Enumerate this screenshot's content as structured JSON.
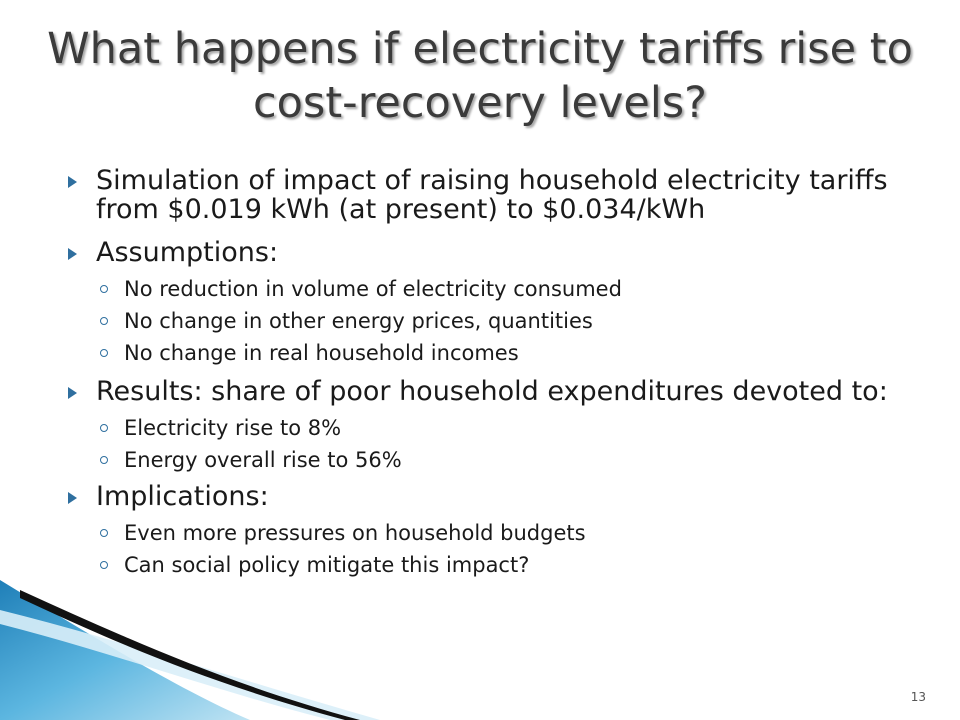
{
  "title": "What happens if electricity tariffs rise to cost-recovery levels?",
  "bullets": [
    {
      "text": "Simulation of impact of raising household electricity tariffs from $0.019 kWh (at present) to $0.034/kWh",
      "sub": []
    },
    {
      "text": "Assumptions:",
      "sub": [
        "No reduction in volume of electricity consumed",
        "No change in other energy prices, quantities",
        "No change in real household incomes"
      ]
    },
    {
      "text": "Results: share of poor household expenditures devoted to:",
      "sub": [
        "Electricity rise to 8%",
        "Energy overall rise to 56%"
      ]
    },
    {
      "text": "Implications:",
      "sub": [
        "Even more pressures on household budgets",
        "Can social policy mitigate this impact?"
      ]
    }
  ],
  "page_number": "13",
  "colors": {
    "bullet_accent": "#2f6f9f",
    "swoosh_blue": "#4aa3d4",
    "swoosh_dark": "#111111"
  }
}
